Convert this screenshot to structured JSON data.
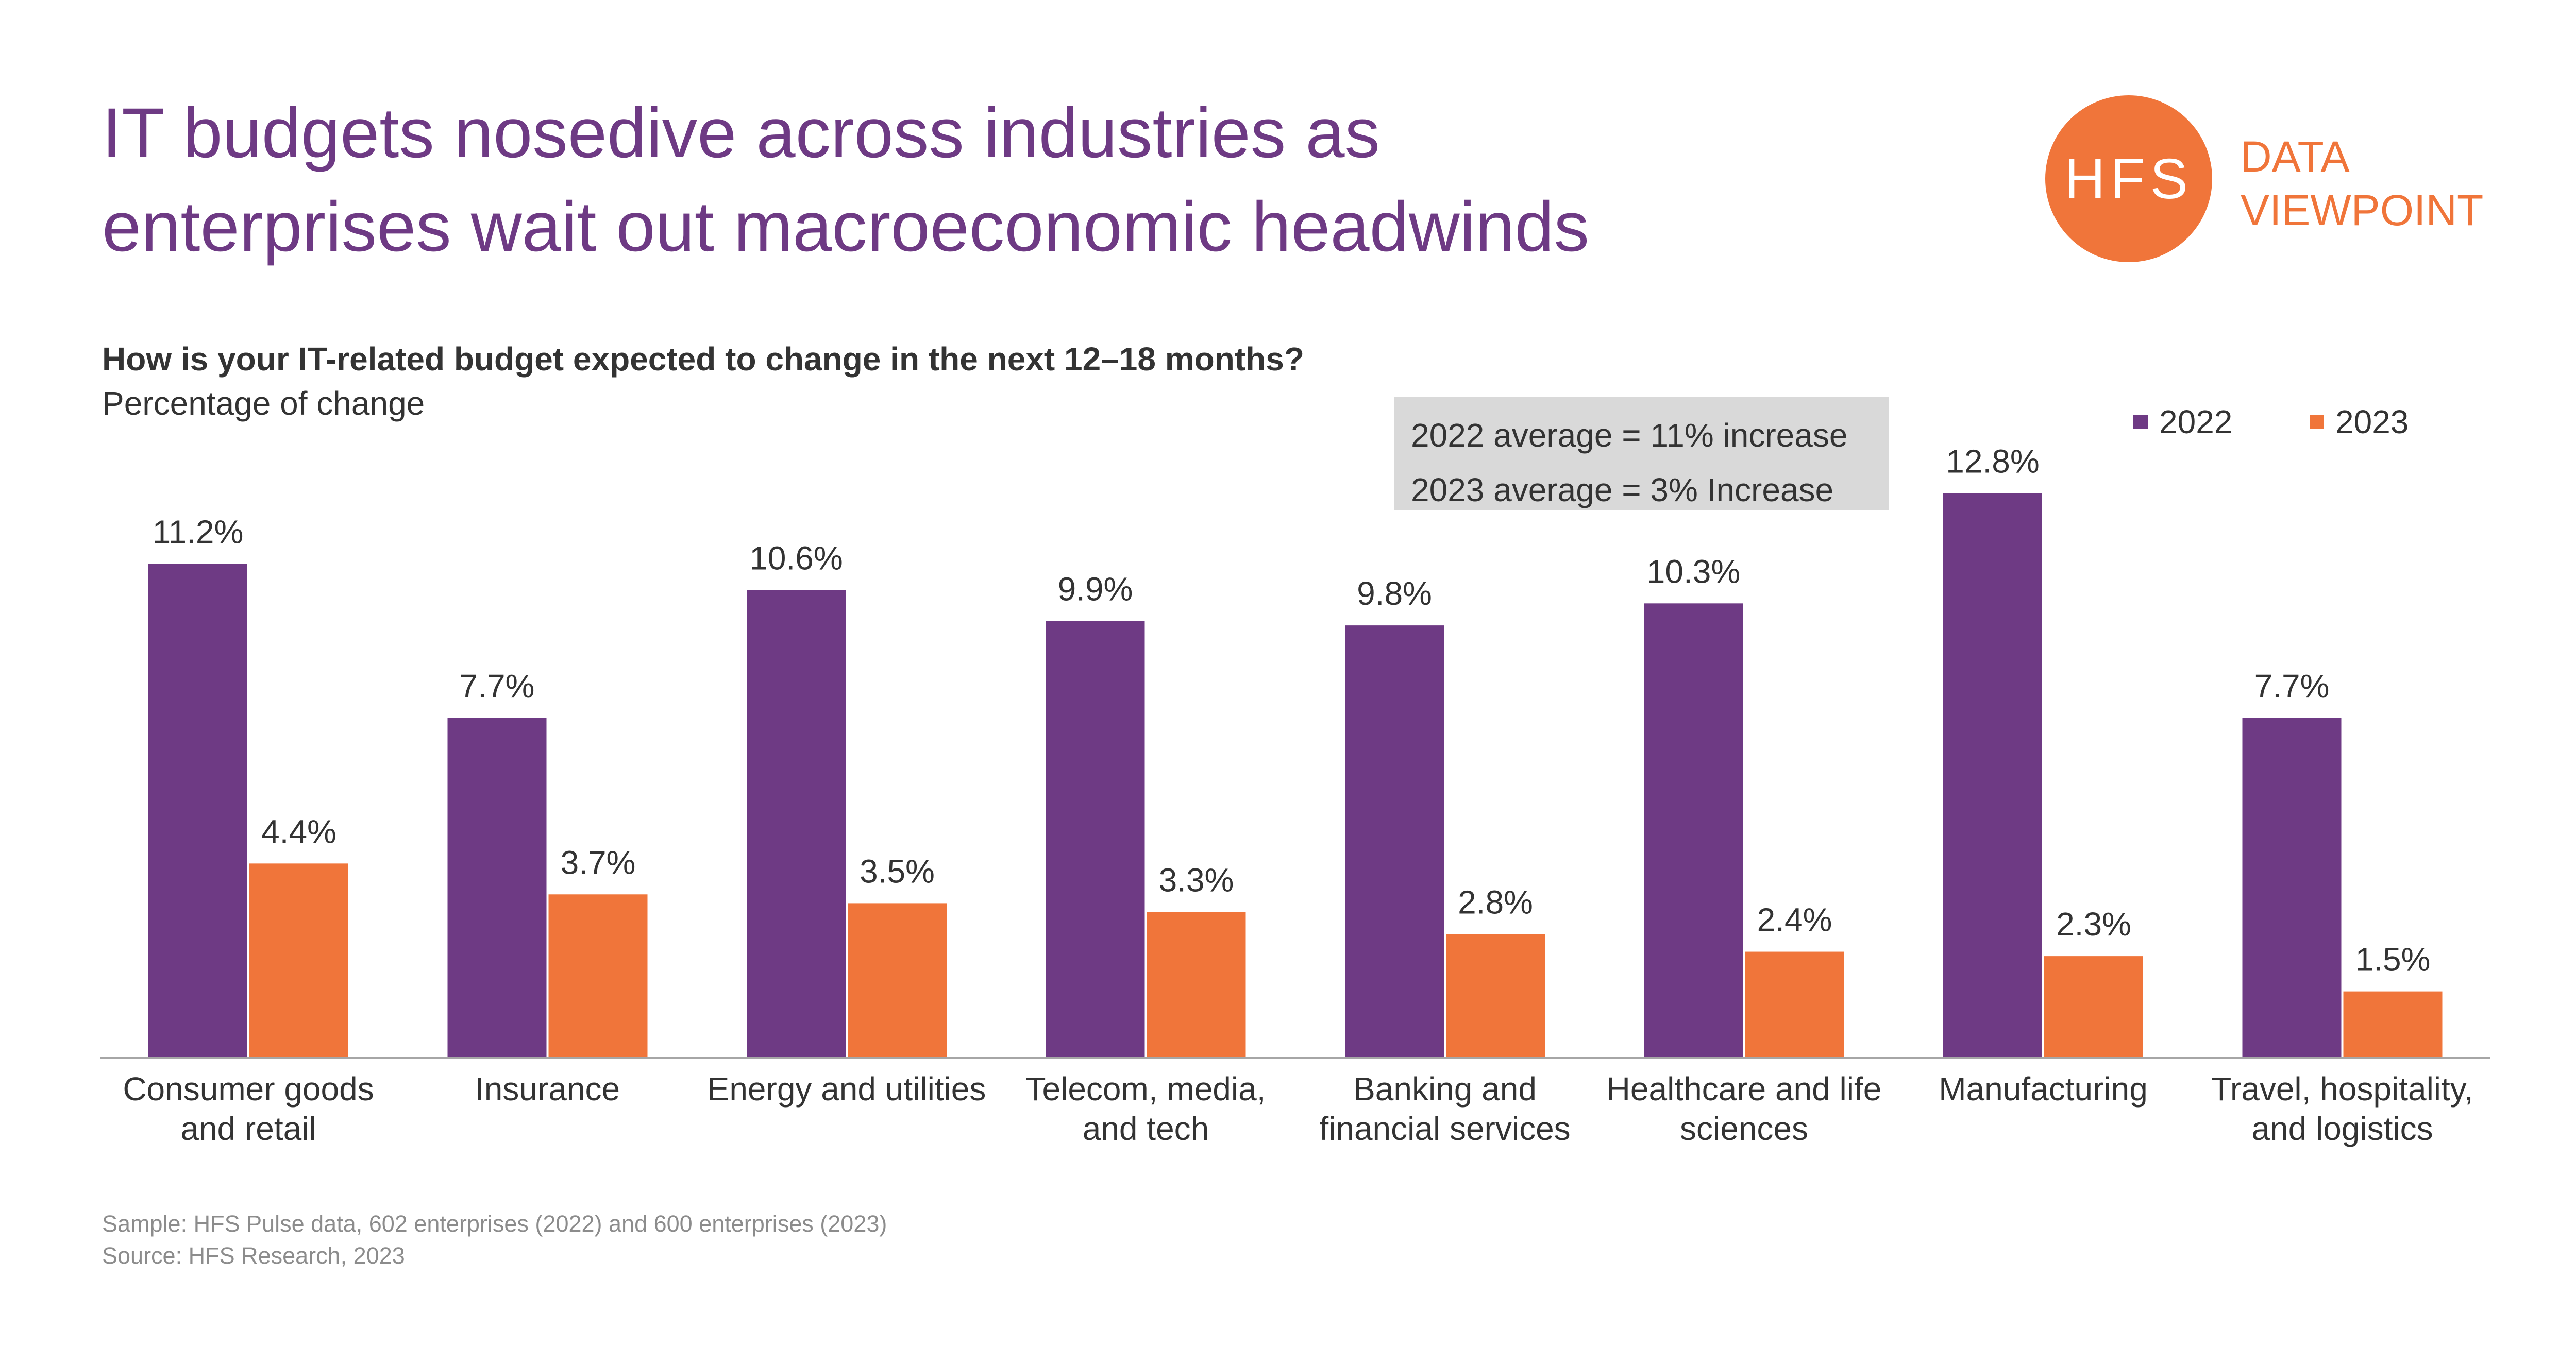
{
  "title_lines": [
    "IT budgets nosedive across industries as",
    "enterprises wait out macroeconomic headwinds"
  ],
  "logo": {
    "mark": "HFS",
    "text_lines": [
      "DATA",
      "VIEWPOINT"
    ]
  },
  "question": "How is your IT-related budget expected to change in the next 12–18 months?",
  "subtitle": "Percentage of change",
  "average_box": {
    "line1": "2022 average = 11% increase",
    "line2": "2023 average = 3% Increase"
  },
  "footer": {
    "sample": "Sample: HFS Pulse data, 602 enterprises (2022) and 600 enterprises (2023)",
    "source": "Source: HFS Research, 2023"
  },
  "colors": {
    "series_2022": "#6e3a84",
    "series_2023": "#f0753a",
    "title": "#6e3a84",
    "axis": "#a6a6a6"
  },
  "chart_data": {
    "type": "bar",
    "title": "How is your IT-related budget expected to change in the next 12–18 months?",
    "ylabel": "Percentage of change",
    "xlabel": "",
    "ylim": [
      0,
      14
    ],
    "grid": false,
    "legend": "top-right",
    "categories": [
      [
        "Consumer goods",
        "and retail"
      ],
      [
        "Insurance"
      ],
      [
        "Energy and utilities"
      ],
      [
        "Telecom, media,",
        "and tech"
      ],
      [
        "Banking and",
        "financial services"
      ],
      [
        "Healthcare and life",
        "sciences"
      ],
      [
        "Manufacturing"
      ],
      [
        "Travel, hospitality,",
        "and logistics"
      ]
    ],
    "series": [
      {
        "name": "2022",
        "values": [
          11.2,
          7.7,
          10.6,
          9.9,
          9.8,
          10.3,
          12.8,
          7.7
        ],
        "labels": [
          "11.2%",
          "7.7%",
          "10.6%",
          "9.9%",
          "9.8%",
          "10.3%",
          "12.8%",
          "7.7%"
        ]
      },
      {
        "name": "2023",
        "values": [
          4.4,
          3.7,
          3.5,
          3.3,
          2.8,
          2.4,
          2.3,
          1.5
        ],
        "labels": [
          "4.4%",
          "3.7%",
          "3.5%",
          "3.3%",
          "2.8%",
          "2.4%",
          "2.3%",
          "1.5%"
        ]
      }
    ]
  }
}
